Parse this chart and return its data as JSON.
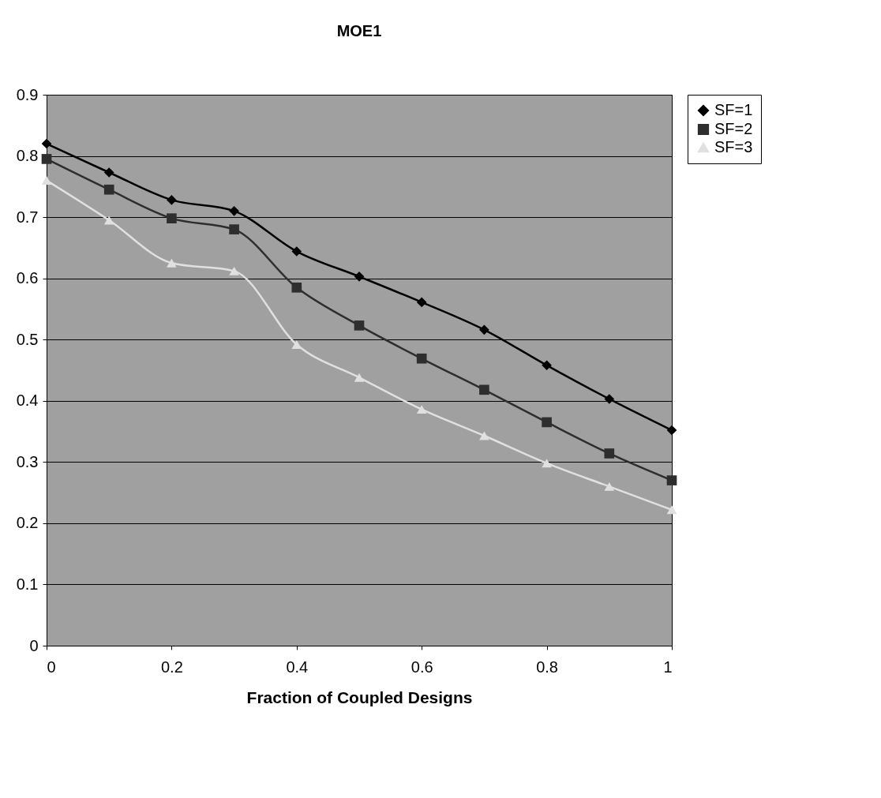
{
  "chart_data": {
    "type": "line",
    "title": "MOE1",
    "xlabel": "Fraction of Coupled Designs",
    "x": [
      0,
      0.1,
      0.2,
      0.3,
      0.4,
      0.5,
      0.6,
      0.7,
      0.8,
      0.9,
      1
    ],
    "series": [
      {
        "name": "SF=1",
        "color": "#000000",
        "marker": "diamond",
        "values": [
          0.82,
          0.773,
          0.728,
          0.71,
          0.644,
          0.603,
          0.561,
          0.516,
          0.458,
          0.403,
          0.352
        ]
      },
      {
        "name": "SF=2",
        "color": "#2e2e2e",
        "marker": "square",
        "values": [
          0.795,
          0.745,
          0.698,
          0.68,
          0.585,
          0.523,
          0.469,
          0.418,
          0.365,
          0.314,
          0.27
        ]
      },
      {
        "name": "SF=3",
        "color": "#e0e0e0",
        "marker": "triangle",
        "values": [
          0.76,
          0.695,
          0.625,
          0.612,
          0.492,
          0.438,
          0.386,
          0.343,
          0.298,
          0.26,
          0.222
        ]
      }
    ],
    "xlim": [
      0,
      1
    ],
    "xticks": [
      0,
      0.2,
      0.4,
      0.6,
      0.8,
      1
    ],
    "ylim": [
      0,
      0.9
    ],
    "yticks": [
      0,
      0.1,
      0.2,
      0.3,
      0.4,
      0.5,
      0.6,
      0.7,
      0.8,
      0.9
    ],
    "grid": "y",
    "legend": "right",
    "line_style": "solid"
  }
}
